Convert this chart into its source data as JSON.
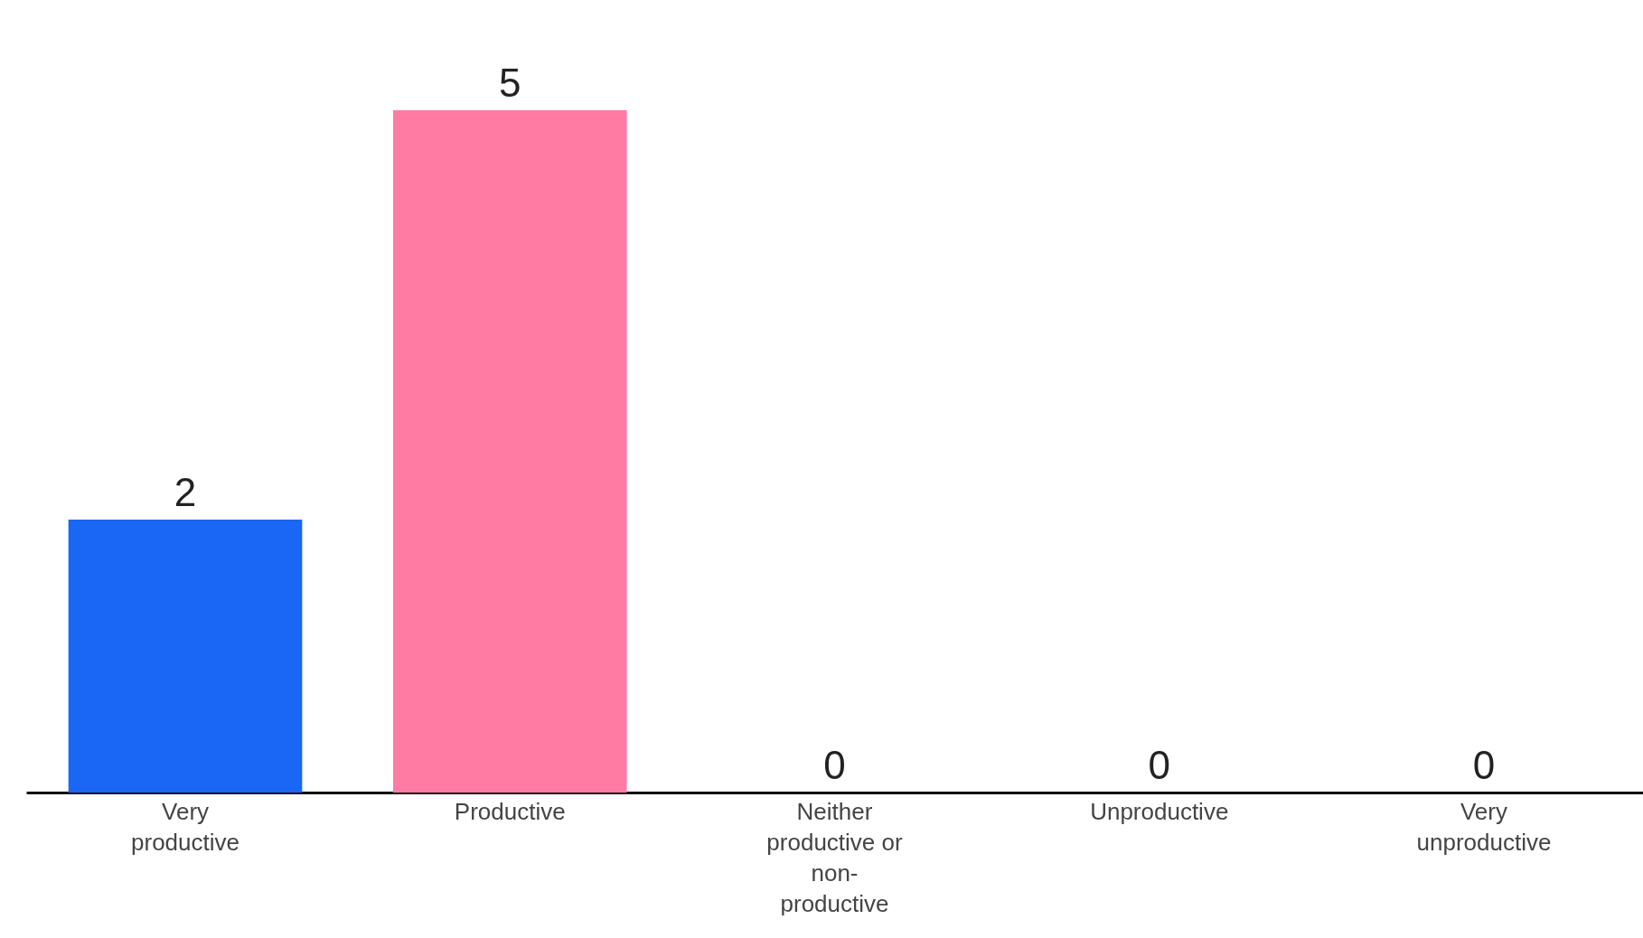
{
  "chart_data": {
    "type": "bar",
    "categories": [
      "Very productive",
      "Productive",
      "Neither productive or non-productive",
      "Unproductive",
      "Very unproductive"
    ],
    "values": [
      2,
      5,
      0,
      0,
      0
    ],
    "colors": [
      "#1a66f5",
      "#ff7ba4",
      null,
      null,
      null
    ],
    "data_labels": true
  }
}
